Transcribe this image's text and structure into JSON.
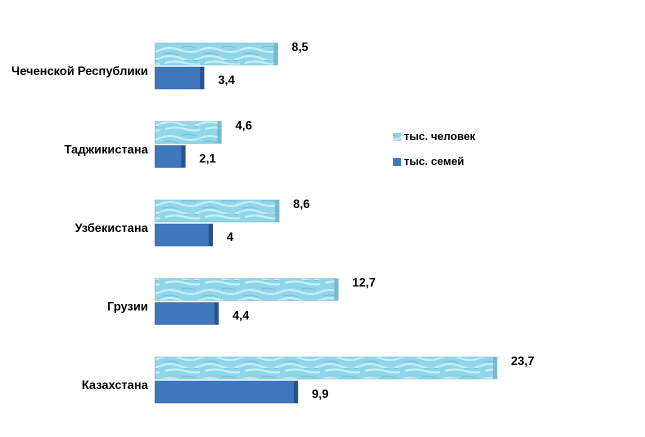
{
  "chart_data": {
    "type": "bar",
    "orientation": "horizontal",
    "categories": [
      "Чеченской Республики",
      "Таджикистана",
      "Узбекистана",
      "Грузии",
      "Казахстана"
    ],
    "series": [
      {
        "name": "тыс. человек",
        "color": "#8fd6e8",
        "values": [
          8.5,
          4.6,
          8.6,
          12.7,
          23.7
        ],
        "value_labels": [
          "8,5",
          "4,6",
          "8,6",
          "12,7",
          "23,7"
        ]
      },
      {
        "name": "тыс. семей",
        "color": "#3f77bd",
        "values": [
          3.4,
          2.1,
          4,
          4.4,
          9.9
        ],
        "value_labels": [
          "3,4",
          "2,1",
          "4",
          "4,4",
          "9,9"
        ]
      }
    ],
    "legend": "right"
  }
}
